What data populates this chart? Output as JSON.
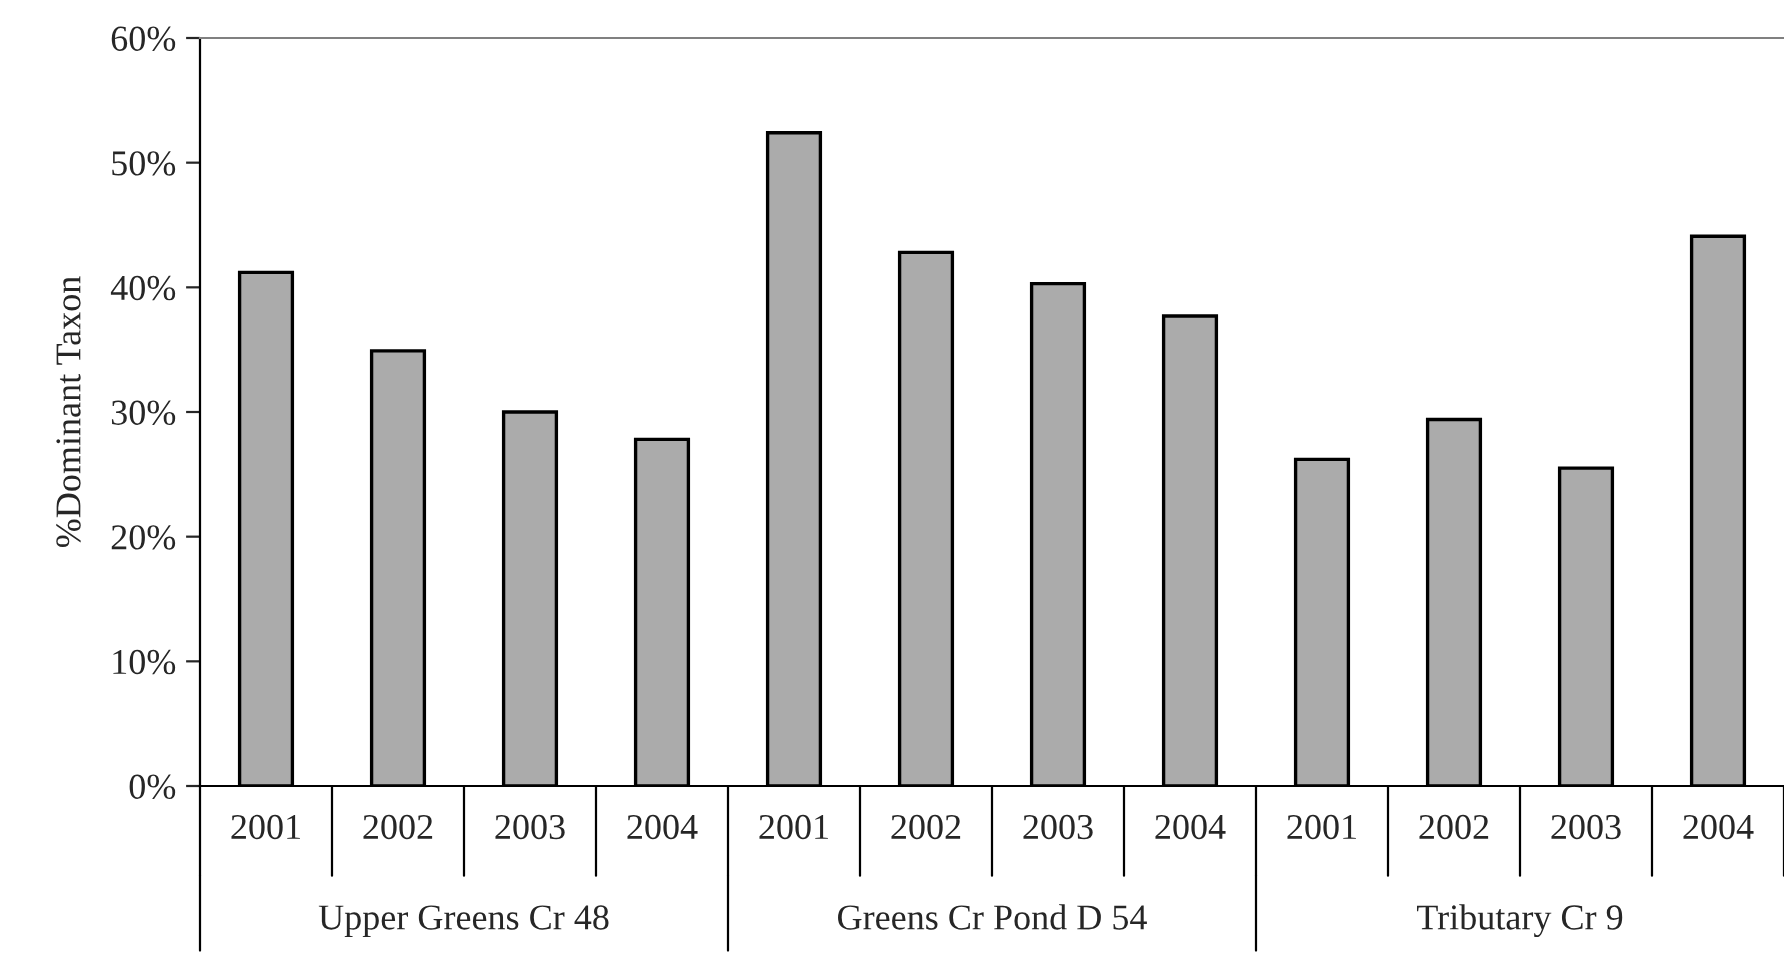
{
  "chart_data": {
    "type": "bar",
    "ylabel": "%Dominant Taxon",
    "categories": [
      "2001",
      "2002",
      "2003",
      "2004",
      "2001",
      "2002",
      "2003",
      "2004",
      "2001",
      "2002",
      "2003",
      "2004"
    ],
    "values": [
      41.2,
      34.9,
      30.0,
      27.8,
      52.4,
      42.8,
      40.3,
      37.7,
      26.2,
      29.4,
      25.5,
      44.1
    ],
    "color": "#ababab",
    "ylim": [
      0,
      60
    ],
    "yticks": [
      {
        "value": 0,
        "label": "0%"
      },
      {
        "value": 10,
        "label": "10%"
      },
      {
        "value": 20,
        "label": "20%"
      },
      {
        "value": 30,
        "label": "30%"
      },
      {
        "value": 40,
        "label": "40%"
      },
      {
        "value": 50,
        "label": "50%"
      },
      {
        "value": 60,
        "label": "60%"
      }
    ],
    "annotations": [
      "Upper Greens Cr 48",
      "Greens Cr Pond D 54",
      "Tributary Cr 9"
    ],
    "grid": false
  }
}
